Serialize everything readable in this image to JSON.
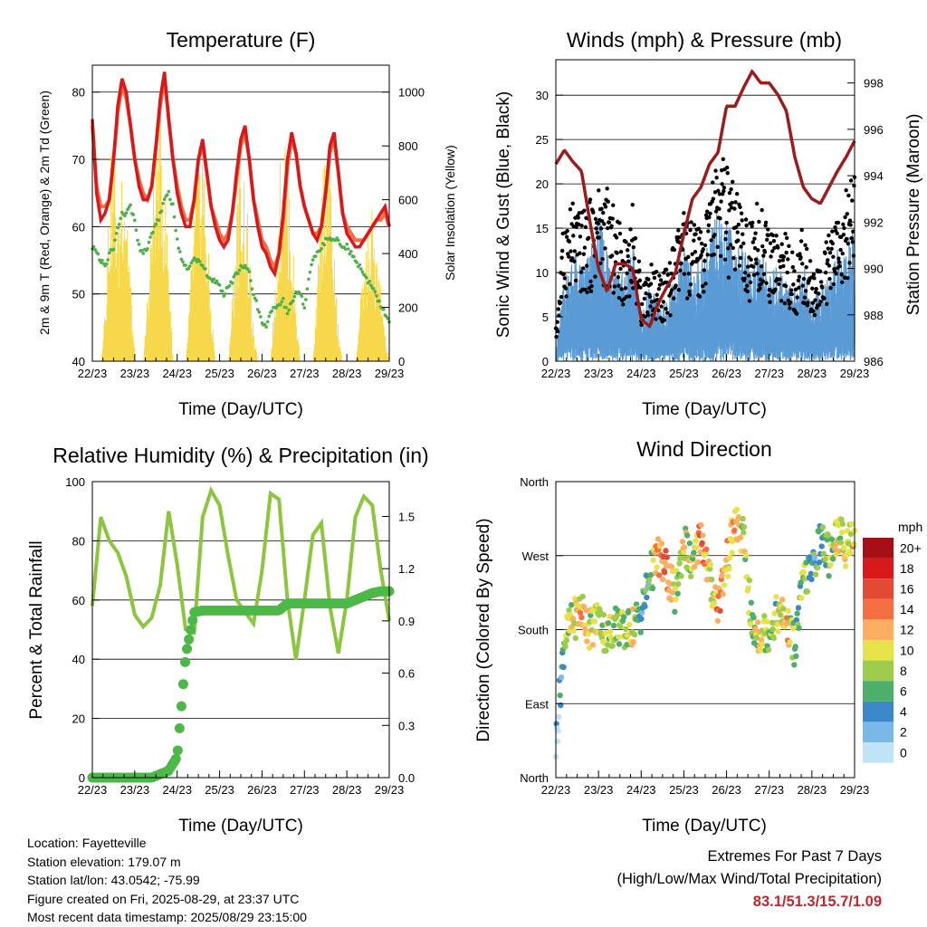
{
  "xticks": [
    "22/23",
    "23/23",
    "24/23",
    "25/23",
    "26/23",
    "27/23",
    "28/23",
    "29/23"
  ],
  "colors": {
    "t2m": "#d7191c",
    "t9m": "#f46d43",
    "td": "#4daf4a",
    "solar": "#f7d84a",
    "wind": "#000000",
    "gust": "#5b9bd5",
    "pressure": "#9b1c1c",
    "rh": "#8cc63f",
    "precip": "#4cb848"
  },
  "colorbar": {
    "title": "mph",
    "labels": [
      "20+",
      "18",
      "16",
      "14",
      "12",
      "10",
      "8",
      "6",
      "4",
      "2",
      "0"
    ],
    "colors": [
      "#a50f15",
      "#d7191c",
      "#e34a33",
      "#f46d43",
      "#fdae61",
      "#e6e24a",
      "#9ccc4a",
      "#4daf6a",
      "#3a88c8",
      "#7ab8e8",
      "#bfe4f8"
    ]
  },
  "chart_data": [
    {
      "type": "line",
      "title": "Temperature (F)",
      "xlabel": "Time (Day/UTC)",
      "ylabel": "2m & 9m T (Red, Orange) & 2m Td (Green)",
      "ylabel_right": "Solar Insolation (Yellow)",
      "ylim": [
        40,
        84
      ],
      "yticks": [
        40,
        50,
        60,
        70,
        80
      ],
      "ylim_right": [
        0,
        1100
      ],
      "yticks_right": [
        0,
        200,
        400,
        600,
        800,
        1000
      ],
      "x": [
        0,
        0.1,
        0.2,
        0.3,
        0.4,
        0.5,
        0.6,
        0.7,
        0.8,
        0.9,
        1.0,
        1.1,
        1.2,
        1.3,
        1.4,
        1.5,
        1.6,
        1.7,
        1.8,
        1.9,
        2.0,
        2.1,
        2.2,
        2.3,
        2.4,
        2.5,
        2.6,
        2.7,
        2.8,
        2.9,
        3.0,
        3.1,
        3.2,
        3.3,
        3.4,
        3.5,
        3.6,
        3.7,
        3.8,
        3.9,
        4.0,
        4.1,
        4.2,
        4.3,
        4.4,
        4.5,
        4.6,
        4.7,
        4.8,
        4.9,
        5.0,
        5.1,
        5.2,
        5.3,
        5.4,
        5.5,
        5.6,
        5.7,
        5.8,
        5.9,
        6.0,
        6.1,
        6.2,
        6.3,
        6.4,
        6.5,
        6.6,
        6.7,
        6.8,
        6.9,
        7.0
      ],
      "series": [
        {
          "name": "2m T",
          "values": [
            76,
            65,
            61,
            62,
            64,
            70,
            78,
            82,
            80,
            75,
            70,
            66,
            64,
            64,
            66,
            72,
            79,
            83,
            76,
            70,
            65,
            62,
            60,
            60,
            64,
            70,
            73,
            68,
            63,
            60,
            58,
            57,
            58,
            62,
            68,
            73,
            75,
            70,
            64,
            60,
            57,
            56,
            54,
            53,
            56,
            62,
            70,
            74,
            71,
            66,
            63,
            61,
            59,
            58,
            60,
            65,
            72,
            74,
            68,
            62,
            59,
            58,
            57,
            57,
            58,
            59,
            60,
            61,
            62,
            63,
            60
          ]
        },
        {
          "name": "9m T",
          "values": [
            75,
            66,
            63,
            63,
            64,
            70,
            77,
            81,
            79,
            75,
            70,
            67,
            65,
            64,
            66,
            72,
            78,
            82,
            76,
            70,
            66,
            63,
            61,
            61,
            64,
            70,
            72,
            68,
            63,
            61,
            59,
            58,
            59,
            62,
            67,
            72,
            74,
            70,
            64,
            61,
            58,
            57,
            55,
            54,
            56,
            61,
            69,
            73,
            71,
            66,
            63,
            61,
            59,
            59,
            60,
            65,
            71,
            73,
            68,
            62,
            60,
            59,
            58,
            58,
            58,
            59,
            60,
            61,
            61,
            62,
            60
          ]
        },
        {
          "name": "2m Td",
          "values": [
            57,
            56,
            55,
            54,
            56,
            57,
            60,
            62,
            62,
            63,
            61,
            57,
            56,
            57,
            59,
            60,
            62,
            64,
            65,
            63,
            58,
            55,
            54,
            54,
            55,
            55,
            54,
            53,
            52,
            52,
            51,
            50,
            51,
            52,
            53,
            54,
            54,
            53,
            50,
            48,
            46,
            45,
            47,
            48,
            48,
            49,
            47,
            49,
            50,
            50,
            48,
            52,
            55,
            56,
            57,
            58,
            58,
            58,
            58,
            57,
            57,
            56,
            55,
            54,
            53,
            52,
            51,
            50,
            48,
            47,
            46
          ]
        },
        {
          "name": "Solar",
          "values": [
            0,
            0,
            0,
            300,
            700,
            900,
            500,
            900,
            700,
            300,
            0,
            0,
            0,
            300,
            600,
            900,
            1000,
            700,
            400,
            0,
            0,
            0,
            0,
            300,
            600,
            800,
            900,
            500,
            200,
            0,
            0,
            0,
            0,
            300,
            600,
            800,
            700,
            400,
            100,
            0,
            0,
            0,
            0,
            300,
            700,
            1000,
            800,
            500,
            200,
            0,
            0,
            0,
            0,
            300,
            700,
            900,
            800,
            400,
            100,
            0,
            0,
            0,
            0,
            200,
            400,
            500,
            600,
            400,
            300,
            100,
            0
          ]
        }
      ]
    },
    {
      "type": "scatter",
      "title": "Winds (mph) & Pressure (mb)",
      "xlabel": "Time (Day/UTC)",
      "ylabel": "Sonic Wind & Gust (Blue, Black)",
      "ylabel_right": "Station Pressure (Maroon)",
      "ylim": [
        0,
        34
      ],
      "yticks": [
        0,
        5,
        10,
        15,
        20,
        25,
        30
      ],
      "ylim_right": [
        986,
        999
      ],
      "yticks_right": [
        986,
        988,
        990,
        992,
        994,
        996,
        998
      ],
      "x": [
        0,
        0.2,
        0.4,
        0.6,
        0.8,
        1.0,
        1.2,
        1.4,
        1.6,
        1.8,
        2.0,
        2.2,
        2.4,
        2.6,
        2.8,
        3.0,
        3.2,
        3.4,
        3.6,
        3.8,
        4.0,
        4.2,
        4.4,
        4.6,
        4.8,
        5.0,
        5.2,
        5.4,
        5.6,
        5.8,
        6.0,
        6.2,
        6.4,
        6.6,
        6.8,
        7.0
      ],
      "series": [
        {
          "name": "Sonic Wind",
          "values": [
            1,
            7,
            9,
            8,
            9,
            12,
            10,
            9,
            7,
            10,
            4,
            6,
            5,
            5,
            7,
            9,
            8,
            8,
            10,
            13,
            12,
            10,
            9,
            8,
            10,
            7,
            8,
            7,
            6,
            8,
            5,
            6,
            7,
            9,
            10,
            11
          ]
        },
        {
          "name": "Gust",
          "values": [
            3,
            13,
            14,
            13,
            14,
            16,
            15,
            13,
            11,
            14,
            7,
            9,
            8,
            8,
            11,
            13,
            12,
            12,
            15,
            19,
            17,
            15,
            13,
            12,
            15,
            11,
            12,
            11,
            9,
            12,
            8,
            9,
            11,
            13,
            15,
            17
          ]
        },
        {
          "name": "Station Pressure",
          "values": [
            994.5,
            995.1,
            994.6,
            994.2,
            992.0,
            990.0,
            989.0,
            990.2,
            990.2,
            990.0,
            987.8,
            987.5,
            988.5,
            989.2,
            989.8,
            991.5,
            993.0,
            993.5,
            994.5,
            995.0,
            997.0,
            997.0,
            997.8,
            998.5,
            998.0,
            998.0,
            997.5,
            996.8,
            994.8,
            993.5,
            993.0,
            992.8,
            993.5,
            994.2,
            994.8,
            995.5
          ]
        }
      ]
    },
    {
      "type": "line",
      "title": "Relative Humidity (%) & Precipitation (in)",
      "xlabel": "Time (Day/UTC)",
      "ylabel": "Percent & Total Rainfall",
      "ylim": [
        0,
        100
      ],
      "yticks": [
        0,
        20,
        40,
        60,
        80,
        100
      ],
      "ylim_right": [
        0,
        1.7
      ],
      "yticks_right_labels": [
        "0.0",
        "0.3",
        "0.6",
        "0.9",
        "1.2",
        "1.5"
      ],
      "x": [
        0,
        0.2,
        0.4,
        0.6,
        0.8,
        1.0,
        1.2,
        1.4,
        1.6,
        1.8,
        2.0,
        2.2,
        2.4,
        2.6,
        2.8,
        3.0,
        3.2,
        3.4,
        3.6,
        3.8,
        4.0,
        4.2,
        4.4,
        4.6,
        4.8,
        5.0,
        5.2,
        5.4,
        5.6,
        5.8,
        6.0,
        6.2,
        6.4,
        6.6,
        6.8,
        7.0
      ],
      "series": [
        {
          "name": "RH",
          "values": [
            58,
            88,
            80,
            76,
            68,
            55,
            51,
            54,
            65,
            90,
            72,
            50,
            49,
            88,
            97,
            92,
            75,
            60,
            56,
            52,
            70,
            96,
            94,
            60,
            40,
            60,
            82,
            86,
            58,
            42,
            60,
            88,
            95,
            92,
            70,
            53
          ]
        },
        {
          "name": "Precipitation",
          "values": [
            0,
            0,
            0,
            0,
            0,
            0,
            0,
            0,
            0.02,
            0.04,
            0.12,
            0.7,
            0.95,
            0.96,
            0.96,
            0.96,
            0.96,
            0.96,
            0.96,
            0.96,
            0.96,
            0.96,
            0.96,
            1.0,
            1.0,
            1.0,
            1.0,
            1.0,
            1.0,
            1.0,
            1.0,
            1.02,
            1.04,
            1.06,
            1.07,
            1.07
          ]
        }
      ]
    },
    {
      "type": "scatter",
      "title": "Wind Direction",
      "xlabel": "Time (Day/UTC)",
      "ylabel": "Direction (Colored By Speed)",
      "ylim": [
        0,
        360
      ],
      "ytick_values": [
        0,
        90,
        180,
        270,
        360
      ],
      "yticks": [
        "North",
        "East",
        "South",
        "West",
        "North"
      ],
      "x": [
        0,
        0.2,
        0.4,
        0.6,
        0.8,
        1.0,
        1.2,
        1.4,
        1.6,
        1.8,
        2.0,
        2.2,
        2.4,
        2.6,
        2.8,
        3.0,
        3.2,
        3.4,
        3.6,
        3.8,
        4.0,
        4.2,
        4.4,
        4.6,
        4.8,
        5.0,
        5.2,
        5.4,
        5.6,
        5.8,
        6.0,
        6.2,
        6.4,
        6.6,
        6.8,
        7.0
      ],
      "series": [
        {
          "name": "Direction",
          "values": [
            40,
            170,
            190,
            205,
            180,
            195,
            170,
            190,
            175,
            185,
            200,
            245,
            270,
            250,
            220,
            290,
            250,
            300,
            240,
            210,
            260,
            310,
            290,
            180,
            175,
            180,
            200,
            190,
            160,
            240,
            250,
            290,
            270,
            300,
            280,
            300
          ]
        },
        {
          "name": "Speed",
          "values": [
            1,
            7,
            9,
            11,
            9,
            10,
            9,
            8,
            7,
            10,
            4,
            6,
            12,
            15,
            8,
            9,
            8,
            15,
            10,
            13,
            10,
            11,
            9,
            8,
            10,
            7,
            8,
            12,
            6,
            8,
            5,
            6,
            7,
            9,
            10,
            11
          ]
        }
      ]
    }
  ],
  "info": {
    "location": "Location: Fayetteville",
    "elevation": "Station elevation: 179.07 m",
    "latlon": "Station lat/lon: 43.0542; -75.99",
    "created": "Figure created on Fri, 2025-08-29, at 23:37 UTC",
    "recent": "Most recent data timestamp: 2025/08/29 23:15:00"
  },
  "extremes": {
    "line1": "Extremes For Past 7 Days",
    "line2": "(High/Low/Max Wind/Total Precipitation)",
    "values": "83.1/51.3/15.7/1.09"
  }
}
